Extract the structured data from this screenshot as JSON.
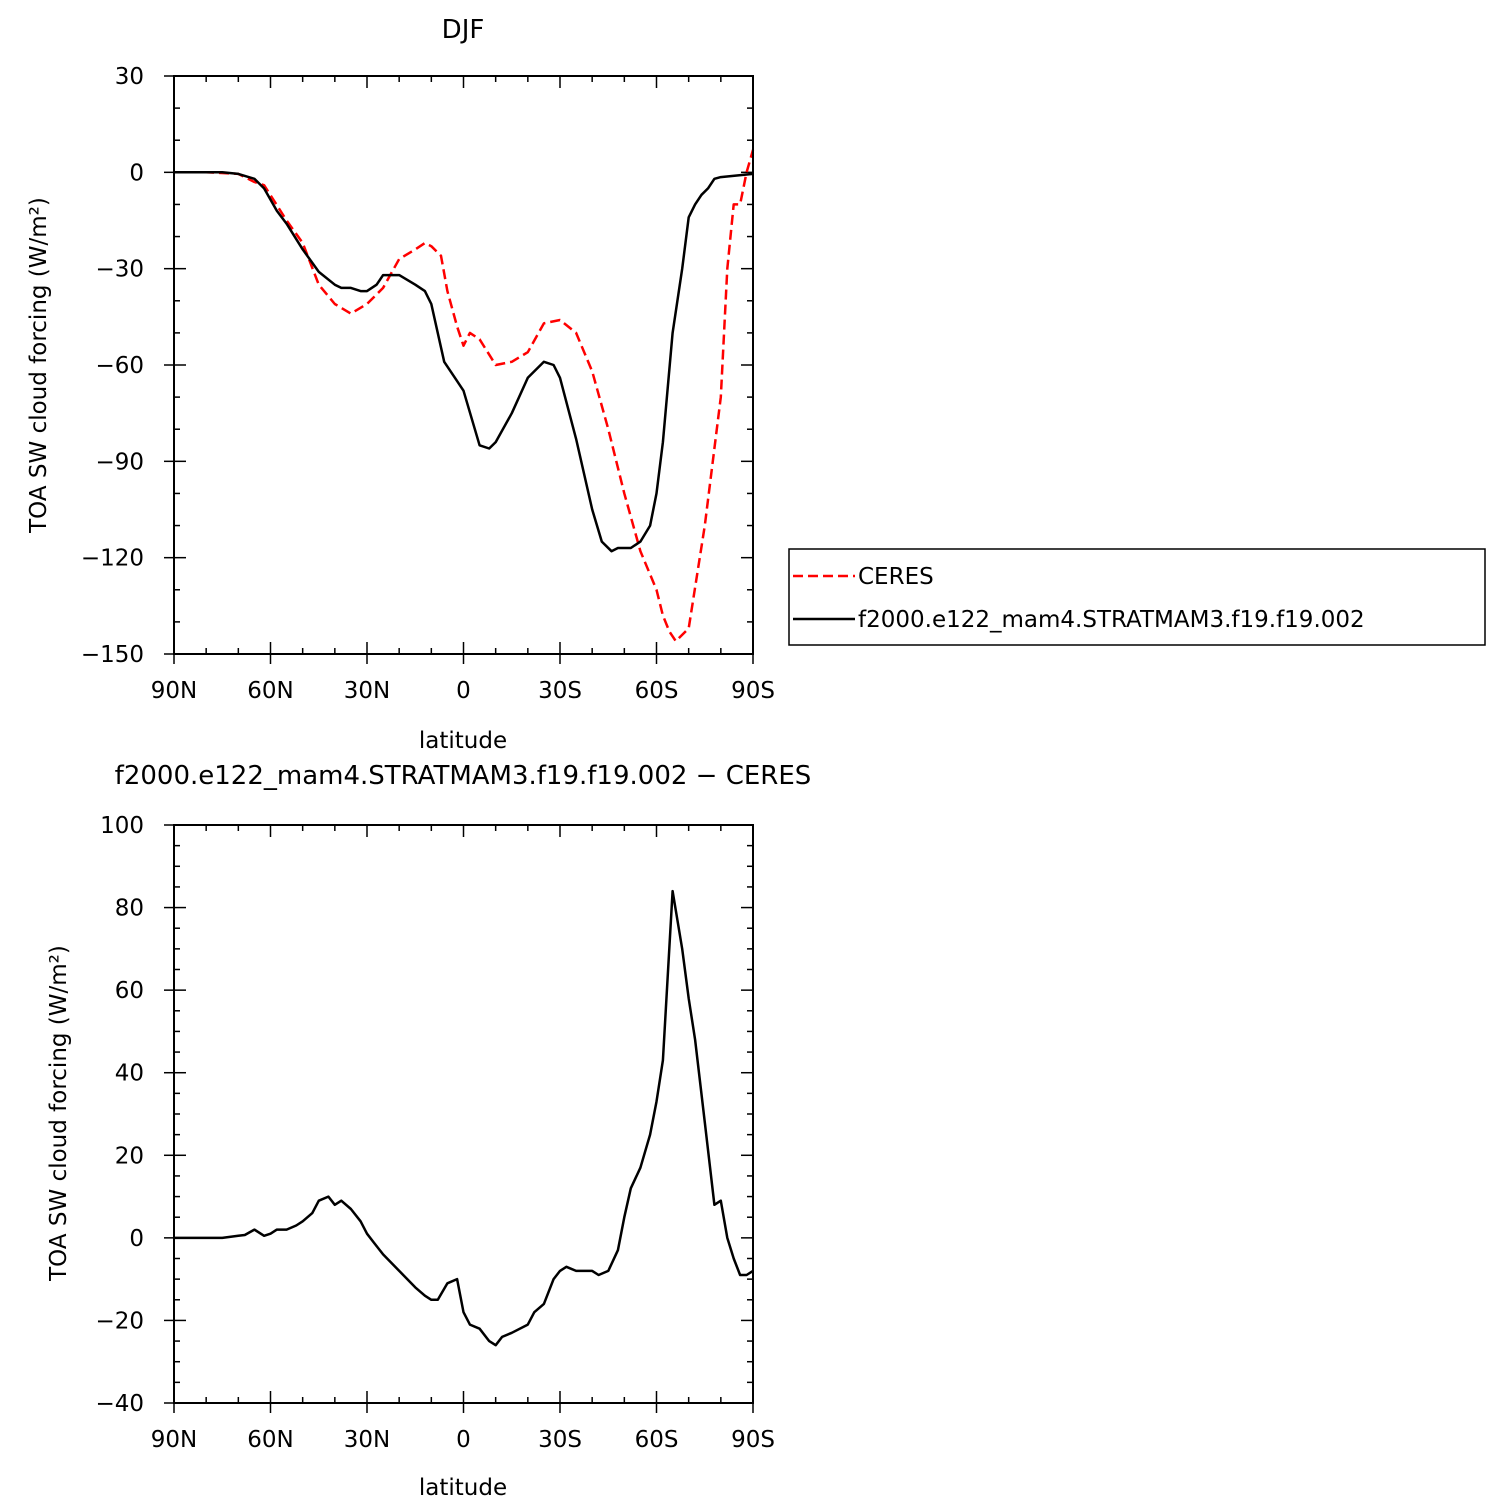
{
  "chart_data": [
    {
      "type": "line",
      "title": "DJF",
      "xlabel": "latitude",
      "ylabel": "TOA SW cloud forcing (W/m²)",
      "xlim": [
        90,
        -90
      ],
      "ylim": [
        -150,
        30
      ],
      "x_tick_labels": [
        "90N",
        "60N",
        "30N",
        "0",
        "30S",
        "60S",
        "90S"
      ],
      "y_tick_labels": [
        "30",
        "0",
        "−30",
        "−60",
        "−90",
        "−120",
        "−150"
      ],
      "y_tick_values": [
        30,
        0,
        -30,
        -60,
        -90,
        -120,
        -150
      ],
      "legend": {
        "placement": "right",
        "entries": [
          "CERES",
          "f2000.e122_mam4.STRATMAM3.f19.f19.002"
        ]
      },
      "series": [
        {
          "name": "CERES",
          "color": "#ff0000",
          "style": "dashed",
          "x": [
            90,
            80,
            70,
            65,
            62,
            55,
            50,
            45,
            40,
            35,
            30,
            25,
            20,
            15,
            12,
            10,
            7,
            5,
            2,
            0,
            -2,
            -5,
            -10,
            -15,
            -20,
            -25,
            -30,
            -35,
            -40,
            -45,
            -50,
            -55,
            -60,
            -62,
            -64,
            -66,
            -70,
            -75,
            -80,
            -82,
            -84,
            -86,
            -88,
            -90
          ],
          "y": [
            0,
            0,
            -0.5,
            -3,
            -4,
            -15,
            -22,
            -35,
            -41,
            -44,
            -41,
            -36,
            -27,
            -24,
            -22,
            -23,
            -26,
            -37,
            -48,
            -54,
            -50,
            -52,
            -60,
            -59,
            -56,
            -47,
            -46,
            -50,
            -62,
            -80,
            -100,
            -118,
            -130,
            -138,
            -143,
            -146,
            -142,
            -110,
            -70,
            -30,
            -10,
            -10,
            0,
            7
          ]
        },
        {
          "name": "f2000.e122_mam4.STRATMAM3.f19.f19.002",
          "color": "#000000",
          "style": "solid",
          "x": [
            90,
            75,
            70,
            65,
            62,
            58,
            55,
            50,
            45,
            40,
            38,
            35,
            32,
            30,
            27,
            25,
            20,
            15,
            12,
            10,
            6,
            2,
            0,
            -5,
            -8,
            -10,
            -15,
            -20,
            -25,
            -28,
            -30,
            -35,
            -40,
            -43,
            -46,
            -48,
            -52,
            -55,
            -58,
            -60,
            -62,
            -65,
            -68,
            -70,
            -72,
            -74,
            -76,
            -78,
            -80,
            -90
          ],
          "y": [
            0,
            0,
            -0.5,
            -2,
            -5,
            -12,
            -16,
            -24,
            -31,
            -35,
            -36,
            -36,
            -37,
            -37,
            -35,
            -32,
            -32,
            -35,
            -37,
            -41,
            -59,
            -65,
            -68,
            -85,
            -86,
            -84,
            -75,
            -64,
            -59,
            -60,
            -64,
            -83,
            -105,
            -115,
            -118,
            -117,
            -117,
            -115,
            -110,
            -100,
            -84,
            -50,
            -30,
            -14,
            -10,
            -7,
            -5,
            -2,
            -1.5,
            -0.5
          ]
        }
      ]
    },
    {
      "type": "line",
      "title": "f2000.e122_mam4.STRATMAM3.f19.f19.002 − CERES",
      "xlabel": "latitude",
      "ylabel": "TOA SW cloud forcing (W/m²)",
      "xlim": [
        90,
        -90
      ],
      "ylim": [
        -40,
        100
      ],
      "x_tick_labels": [
        "90N",
        "60N",
        "30N",
        "0",
        "30S",
        "60S",
        "90S"
      ],
      "y_tick_labels": [
        "100",
        "80",
        "60",
        "40",
        "20",
        "0",
        "−20",
        "−40"
      ],
      "y_tick_values": [
        100,
        80,
        60,
        40,
        20,
        0,
        -20,
        -40
      ],
      "series": [
        {
          "name": "",
          "color": "#000000",
          "style": "solid",
          "x": [
            90,
            75,
            70,
            68,
            65,
            62,
            60,
            58,
            55,
            52,
            50,
            47,
            45,
            42,
            40,
            38,
            35,
            32,
            30,
            28,
            25,
            20,
            15,
            12,
            10,
            8,
            5,
            2,
            0,
            -2,
            -5,
            -8,
            -10,
            -12,
            -15,
            -20,
            -22,
            -25,
            -28,
            -30,
            -32,
            -35,
            -38,
            -40,
            -42,
            -45,
            -48,
            -50,
            -52,
            -55,
            -58,
            -60,
            -62,
            -65,
            -68,
            -70,
            -72,
            -75,
            -78,
            -80,
            -82,
            -84,
            -86,
            -88,
            -90
          ],
          "y": [
            0,
            0,
            0.5,
            0.7,
            2,
            0.5,
            1,
            2,
            2,
            3,
            4,
            6,
            9,
            10,
            8,
            9,
            7,
            4,
            1,
            -1,
            -4,
            -8,
            -12,
            -14,
            -15,
            -15,
            -11,
            -10,
            -18,
            -21,
            -22,
            -25,
            -26,
            -24,
            -23,
            -21,
            -18,
            -16,
            -10,
            -8,
            -7,
            -8,
            -8,
            -8,
            -9,
            -8,
            -3,
            5,
            12,
            17,
            25,
            33,
            43,
            84,
            70,
            58,
            48,
            28,
            8,
            9,
            0,
            -5,
            -9,
            -9,
            -8
          ]
        }
      ]
    }
  ]
}
